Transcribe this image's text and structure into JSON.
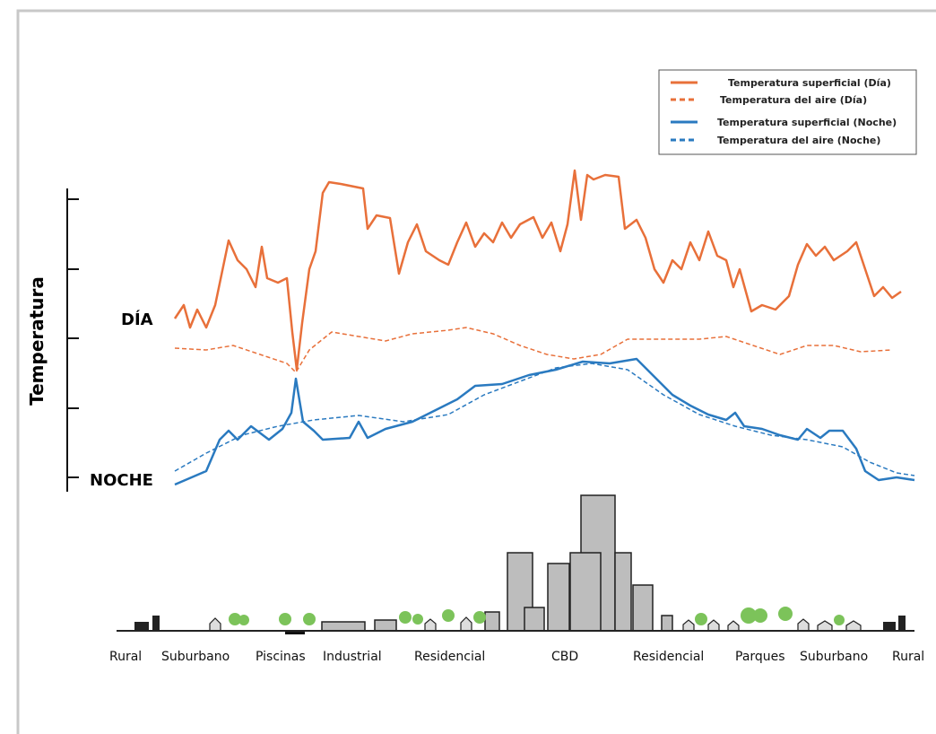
{
  "y_axis_label": "Temperatura",
  "levels": {
    "day": "DÍA",
    "night": "NOCHE"
  },
  "legend": [
    {
      "label": "Temperatura superficial (Día)",
      "color": "#e8703a",
      "style": "solid"
    },
    {
      "label": "Temperatura del aire (Día)",
      "color": "#e8703a",
      "style": "dashed"
    },
    {
      "label": "Temperatura superficial (Noche)",
      "color": "#2a7ac0",
      "style": "solid"
    },
    {
      "label": "Temperatura del aire (Noche)",
      "color": "#2a7ac0",
      "style": "dashed"
    }
  ],
  "zones": [
    "Rural",
    "Suburbano",
    "Piscinas",
    "Industrial",
    "Residencial",
    "CBD",
    "Residencial",
    "Parques",
    "Suburbano",
    "Rural"
  ]
}
